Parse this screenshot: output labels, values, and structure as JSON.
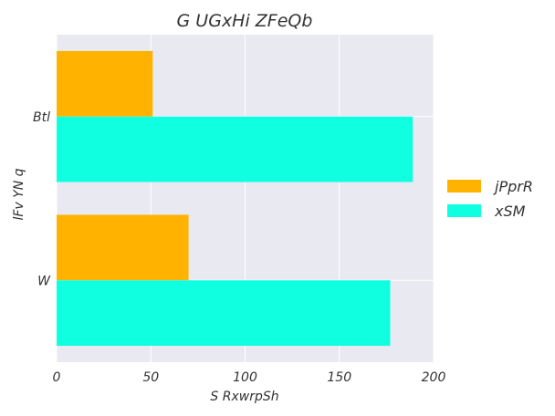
{
  "chart_data": {
    "type": "bar",
    "orientation": "horizontal",
    "title": "G  UGxHi ZFeQb",
    "xlabel": "S RxwrpSh",
    "ylabel": "lFv YN q",
    "categories": [
      "Btl",
      "W"
    ],
    "series": [
      {
        "name": "jPprR",
        "values": [
          51,
          70
        ],
        "color": "#ffb300"
      },
      {
        "name": "xSM",
        "values": [
          189,
          177
        ],
        "color": "#10ffe0"
      }
    ],
    "xlim": [
      0,
      200
    ],
    "xticks": [
      0,
      50,
      100,
      150,
      200
    ],
    "grid": true,
    "legend_position": "right",
    "colors": {
      "plot_background": "#e9e9f1",
      "grid": "#ffffff"
    }
  }
}
